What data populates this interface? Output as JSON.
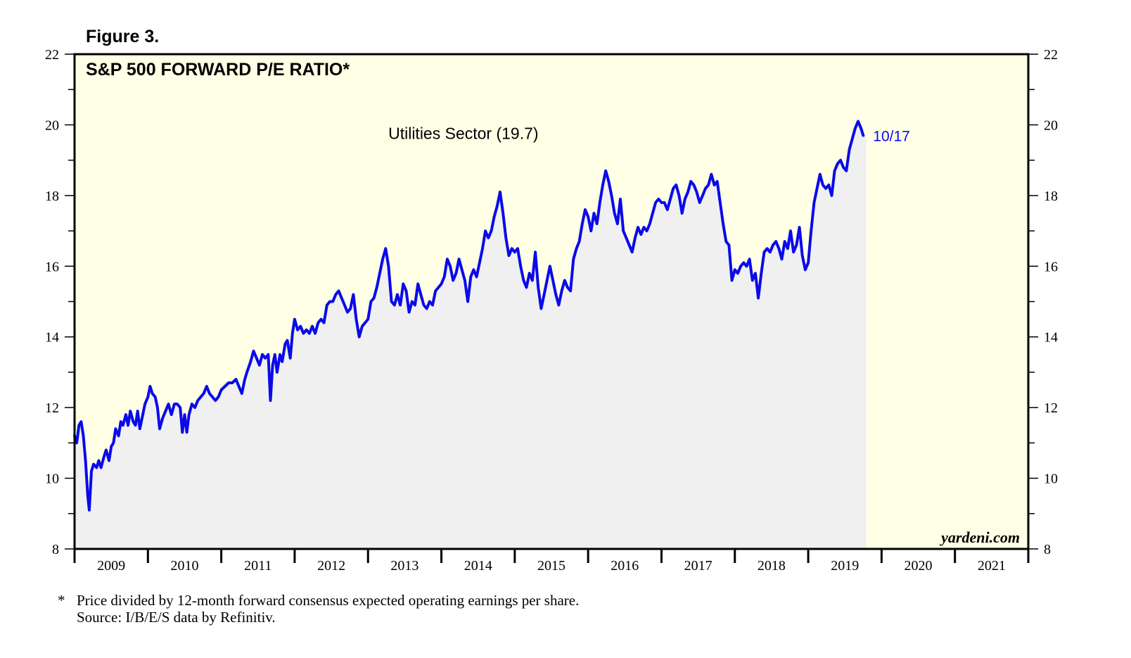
{
  "figure_label": "Figure 3.",
  "chart_data": {
    "type": "line",
    "title": "S&P 500 FORWARD P/E RATIO*",
    "series": [
      {
        "name": "Utilities Sector (19.7)",
        "color": "#0a0aeb",
        "end_label": "10/17",
        "points": [
          [
            2009.0,
            11.2
          ],
          [
            2009.03,
            11.0
          ],
          [
            2009.06,
            11.5
          ],
          [
            2009.09,
            11.6
          ],
          [
            2009.12,
            11.2
          ],
          [
            2009.15,
            10.5
          ],
          [
            2009.18,
            9.5
          ],
          [
            2009.2,
            9.1
          ],
          [
            2009.23,
            10.2
          ],
          [
            2009.26,
            10.4
          ],
          [
            2009.3,
            10.3
          ],
          [
            2009.33,
            10.5
          ],
          [
            2009.36,
            10.3
          ],
          [
            2009.4,
            10.6
          ],
          [
            2009.43,
            10.8
          ],
          [
            2009.47,
            10.5
          ],
          [
            2009.5,
            10.9
          ],
          [
            2009.53,
            11.0
          ],
          [
            2009.56,
            11.4
          ],
          [
            2009.6,
            11.2
          ],
          [
            2009.63,
            11.6
          ],
          [
            2009.66,
            11.5
          ],
          [
            2009.7,
            11.8
          ],
          [
            2009.73,
            11.5
          ],
          [
            2009.76,
            11.9
          ],
          [
            2009.8,
            11.6
          ],
          [
            2009.83,
            11.5
          ],
          [
            2009.86,
            11.9
          ],
          [
            2009.89,
            11.4
          ],
          [
            2009.93,
            11.8
          ],
          [
            2009.96,
            12.1
          ],
          [
            2010.0,
            12.3
          ],
          [
            2010.03,
            12.6
          ],
          [
            2010.06,
            12.4
          ],
          [
            2010.1,
            12.3
          ],
          [
            2010.13,
            12.0
          ],
          [
            2010.16,
            11.4
          ],
          [
            2010.2,
            11.7
          ],
          [
            2010.24,
            11.9
          ],
          [
            2010.28,
            12.1
          ],
          [
            2010.32,
            11.8
          ],
          [
            2010.36,
            12.1
          ],
          [
            2010.4,
            12.1
          ],
          [
            2010.44,
            12.0
          ],
          [
            2010.47,
            11.3
          ],
          [
            2010.5,
            11.8
          ],
          [
            2010.53,
            11.3
          ],
          [
            2010.56,
            11.8
          ],
          [
            2010.6,
            12.1
          ],
          [
            2010.64,
            12.0
          ],
          [
            2010.68,
            12.2
          ],
          [
            2010.72,
            12.3
          ],
          [
            2010.76,
            12.4
          ],
          [
            2010.8,
            12.6
          ],
          [
            2010.84,
            12.4
          ],
          [
            2010.88,
            12.3
          ],
          [
            2010.92,
            12.2
          ],
          [
            2010.96,
            12.3
          ],
          [
            2011.0,
            12.5
          ],
          [
            2011.05,
            12.6
          ],
          [
            2011.1,
            12.7
          ],
          [
            2011.15,
            12.7
          ],
          [
            2011.2,
            12.8
          ],
          [
            2011.24,
            12.6
          ],
          [
            2011.28,
            12.4
          ],
          [
            2011.32,
            12.8
          ],
          [
            2011.35,
            13.0
          ],
          [
            2011.4,
            13.3
          ],
          [
            2011.44,
            13.6
          ],
          [
            2011.48,
            13.4
          ],
          [
            2011.52,
            13.2
          ],
          [
            2011.56,
            13.5
          ],
          [
            2011.6,
            13.4
          ],
          [
            2011.64,
            13.5
          ],
          [
            2011.67,
            12.2
          ],
          [
            2011.7,
            13.2
          ],
          [
            2011.73,
            13.5
          ],
          [
            2011.76,
            13.0
          ],
          [
            2011.8,
            13.5
          ],
          [
            2011.83,
            13.3
          ],
          [
            2011.87,
            13.8
          ],
          [
            2011.9,
            13.9
          ],
          [
            2011.94,
            13.4
          ],
          [
            2011.97,
            14.1
          ],
          [
            2012.0,
            14.5
          ],
          [
            2012.04,
            14.2
          ],
          [
            2012.08,
            14.3
          ],
          [
            2012.12,
            14.1
          ],
          [
            2012.16,
            14.2
          ],
          [
            2012.2,
            14.1
          ],
          [
            2012.24,
            14.3
          ],
          [
            2012.28,
            14.1
          ],
          [
            2012.32,
            14.4
          ],
          [
            2012.36,
            14.5
          ],
          [
            2012.4,
            14.4
          ],
          [
            2012.44,
            14.9
          ],
          [
            2012.48,
            15.0
          ],
          [
            2012.52,
            15.0
          ],
          [
            2012.56,
            15.2
          ],
          [
            2012.6,
            15.3
          ],
          [
            2012.64,
            15.1
          ],
          [
            2012.68,
            14.9
          ],
          [
            2012.72,
            14.7
          ],
          [
            2012.76,
            14.8
          ],
          [
            2012.8,
            15.2
          ],
          [
            2012.84,
            14.5
          ],
          [
            2012.88,
            14.0
          ],
          [
            2012.92,
            14.3
          ],
          [
            2012.96,
            14.4
          ],
          [
            2013.0,
            14.5
          ],
          [
            2013.04,
            15.0
          ],
          [
            2013.08,
            15.1
          ],
          [
            2013.12,
            15.4
          ],
          [
            2013.16,
            15.8
          ],
          [
            2013.2,
            16.2
          ],
          [
            2013.24,
            16.5
          ],
          [
            2013.28,
            16.0
          ],
          [
            2013.32,
            15.0
          ],
          [
            2013.36,
            14.9
          ],
          [
            2013.4,
            15.2
          ],
          [
            2013.44,
            14.9
          ],
          [
            2013.48,
            15.5
          ],
          [
            2013.52,
            15.3
          ],
          [
            2013.56,
            14.7
          ],
          [
            2013.6,
            15.0
          ],
          [
            2013.64,
            14.9
          ],
          [
            2013.68,
            15.5
          ],
          [
            2013.72,
            15.2
          ],
          [
            2013.76,
            14.9
          ],
          [
            2013.8,
            14.8
          ],
          [
            2013.84,
            15.0
          ],
          [
            2013.88,
            14.9
          ],
          [
            2013.92,
            15.3
          ],
          [
            2013.96,
            15.4
          ],
          [
            2014.0,
            15.5
          ],
          [
            2014.04,
            15.7
          ],
          [
            2014.08,
            16.2
          ],
          [
            2014.12,
            16.0
          ],
          [
            2014.16,
            15.6
          ],
          [
            2014.2,
            15.8
          ],
          [
            2014.24,
            16.2
          ],
          [
            2014.28,
            15.9
          ],
          [
            2014.32,
            15.6
          ],
          [
            2014.36,
            15.0
          ],
          [
            2014.4,
            15.7
          ],
          [
            2014.44,
            15.9
          ],
          [
            2014.48,
            15.7
          ],
          [
            2014.52,
            16.1
          ],
          [
            2014.56,
            16.5
          ],
          [
            2014.6,
            17.0
          ],
          [
            2014.64,
            16.8
          ],
          [
            2014.68,
            17.0
          ],
          [
            2014.72,
            17.4
          ],
          [
            2014.76,
            17.7
          ],
          [
            2014.8,
            18.1
          ],
          [
            2014.84,
            17.5
          ],
          [
            2014.88,
            16.8
          ],
          [
            2014.92,
            16.3
          ],
          [
            2014.96,
            16.5
          ],
          [
            2015.0,
            16.4
          ],
          [
            2015.04,
            16.5
          ],
          [
            2015.08,
            16.0
          ],
          [
            2015.12,
            15.6
          ],
          [
            2015.16,
            15.4
          ],
          [
            2015.2,
            15.8
          ],
          [
            2015.24,
            15.6
          ],
          [
            2015.28,
            16.4
          ],
          [
            2015.32,
            15.4
          ],
          [
            2015.36,
            14.8
          ],
          [
            2015.4,
            15.2
          ],
          [
            2015.44,
            15.6
          ],
          [
            2015.48,
            16.0
          ],
          [
            2015.52,
            15.6
          ],
          [
            2015.56,
            15.2
          ],
          [
            2015.6,
            14.9
          ],
          [
            2015.64,
            15.3
          ],
          [
            2015.68,
            15.6
          ],
          [
            2015.72,
            15.4
          ],
          [
            2015.76,
            15.3
          ],
          [
            2015.8,
            16.2
          ],
          [
            2015.84,
            16.5
          ],
          [
            2015.88,
            16.7
          ],
          [
            2015.92,
            17.2
          ],
          [
            2015.96,
            17.6
          ],
          [
            2016.0,
            17.4
          ],
          [
            2016.04,
            17.0
          ],
          [
            2016.08,
            17.5
          ],
          [
            2016.12,
            17.2
          ],
          [
            2016.16,
            17.8
          ],
          [
            2016.2,
            18.3
          ],
          [
            2016.24,
            18.7
          ],
          [
            2016.28,
            18.4
          ],
          [
            2016.32,
            18.0
          ],
          [
            2016.36,
            17.5
          ],
          [
            2016.4,
            17.2
          ],
          [
            2016.44,
            17.9
          ],
          [
            2016.48,
            17.0
          ],
          [
            2016.52,
            16.8
          ],
          [
            2016.56,
            16.6
          ],
          [
            2016.6,
            16.4
          ],
          [
            2016.64,
            16.8
          ],
          [
            2016.68,
            17.1
          ],
          [
            2016.72,
            16.9
          ],
          [
            2016.76,
            17.1
          ],
          [
            2016.8,
            17.0
          ],
          [
            2016.84,
            17.2
          ],
          [
            2016.88,
            17.5
          ],
          [
            2016.92,
            17.8
          ],
          [
            2016.96,
            17.9
          ],
          [
            2017.0,
            17.8
          ],
          [
            2017.04,
            17.8
          ],
          [
            2017.08,
            17.6
          ],
          [
            2017.12,
            17.9
          ],
          [
            2017.16,
            18.2
          ],
          [
            2017.2,
            18.3
          ],
          [
            2017.24,
            18.0
          ],
          [
            2017.28,
            17.5
          ],
          [
            2017.32,
            17.9
          ],
          [
            2017.36,
            18.1
          ],
          [
            2017.4,
            18.4
          ],
          [
            2017.44,
            18.3
          ],
          [
            2017.48,
            18.1
          ],
          [
            2017.52,
            17.8
          ],
          [
            2017.56,
            18.0
          ],
          [
            2017.6,
            18.2
          ],
          [
            2017.64,
            18.3
          ],
          [
            2017.68,
            18.6
          ],
          [
            2017.72,
            18.3
          ],
          [
            2017.76,
            18.4
          ],
          [
            2017.8,
            17.8
          ],
          [
            2017.84,
            17.2
          ],
          [
            2017.88,
            16.7
          ],
          [
            2017.92,
            16.6
          ],
          [
            2017.96,
            15.6
          ],
          [
            2018.0,
            15.9
          ],
          [
            2018.04,
            15.8
          ],
          [
            2018.08,
            16.0
          ],
          [
            2018.12,
            16.1
          ],
          [
            2018.16,
            16.0
          ],
          [
            2018.2,
            16.2
          ],
          [
            2018.24,
            15.6
          ],
          [
            2018.28,
            15.8
          ],
          [
            2018.32,
            15.1
          ],
          [
            2018.36,
            15.8
          ],
          [
            2018.4,
            16.4
          ],
          [
            2018.44,
            16.5
          ],
          [
            2018.48,
            16.4
          ],
          [
            2018.52,
            16.6
          ],
          [
            2018.56,
            16.7
          ],
          [
            2018.6,
            16.5
          ],
          [
            2018.64,
            16.2
          ],
          [
            2018.68,
            16.7
          ],
          [
            2018.72,
            16.5
          ],
          [
            2018.76,
            17.0
          ],
          [
            2018.8,
            16.4
          ],
          [
            2018.84,
            16.6
          ],
          [
            2018.88,
            17.1
          ],
          [
            2018.92,
            16.3
          ],
          [
            2018.96,
            15.9
          ],
          [
            2019.0,
            16.1
          ],
          [
            2019.04,
            17.0
          ],
          [
            2019.08,
            17.8
          ],
          [
            2019.12,
            18.2
          ],
          [
            2019.16,
            18.6
          ],
          [
            2019.2,
            18.3
          ],
          [
            2019.24,
            18.2
          ],
          [
            2019.28,
            18.3
          ],
          [
            2019.32,
            18.0
          ],
          [
            2019.36,
            18.7
          ],
          [
            2019.4,
            18.9
          ],
          [
            2019.44,
            19.0
          ],
          [
            2019.48,
            18.8
          ],
          [
            2019.52,
            18.7
          ],
          [
            2019.56,
            19.3
          ],
          [
            2019.6,
            19.6
          ],
          [
            2019.64,
            19.9
          ],
          [
            2019.68,
            20.1
          ],
          [
            2019.72,
            19.9
          ],
          [
            2019.75,
            19.7
          ]
        ]
      }
    ],
    "x_range": [
      2009,
      2022
    ],
    "year_labels": [
      "2009",
      "2010",
      "2011",
      "2012",
      "2013",
      "2014",
      "2015",
      "2016",
      "2017",
      "2018",
      "2019",
      "2020",
      "2021"
    ],
    "ylim": [
      8,
      22
    ],
    "y_ticks": [
      8,
      10,
      12,
      14,
      16,
      18,
      20,
      22
    ],
    "shaded_region_start": 2019.79,
    "watermark": "yardeni.com",
    "colors": {
      "plot_background": "#ffffe6",
      "area_fill": "#f0f0f0",
      "line": "#0a0aeb",
      "end_label": "#0a0aeb",
      "frame": "#000000"
    }
  },
  "footnote": {
    "marker": "*",
    "line1": "Price divided by 12-month forward consensus expected operating earnings per share.",
    "line2": "Source: I/B/E/S data by Refinitiv."
  }
}
